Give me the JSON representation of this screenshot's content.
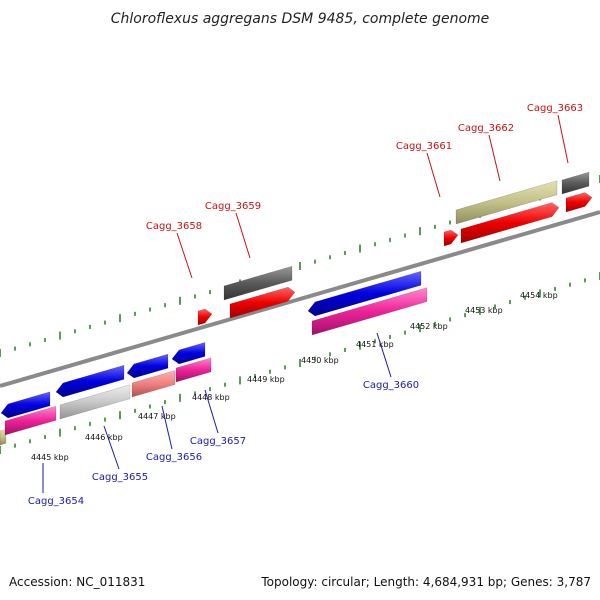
{
  "title": "Chloroflexus aggregans DSM 9485, complete genome",
  "footer": {
    "accession": "Accession: NC_011831",
    "topology": "Topology: circular; Length: 4,684,931 bp; Genes: 3,787"
  },
  "colors": {
    "backbone": "#8a8a8a",
    "tick": "#1f7a1f",
    "label_top": "#cc1111",
    "label_bottom": "#1a1ab0"
  },
  "position_labels": [
    "4445 kbp",
    "4446 kbp",
    "4447 kbp",
    "4448 kbp",
    "4449 kbp",
    "4450 kbp",
    "4451 kbp",
    "4452 kbp",
    "4453 kbp",
    "4454 kbp"
  ],
  "genes": [
    {
      "locus": "Cagg_3654",
      "strand": "-",
      "labeled": true
    },
    {
      "locus": "Cagg_3655",
      "strand": "-",
      "labeled": true
    },
    {
      "locus": "Cagg_3656",
      "strand": "-",
      "labeled": true
    },
    {
      "locus": "Cagg_3657",
      "strand": "-",
      "labeled": true
    },
    {
      "locus": "Cagg_3658",
      "strand": "+",
      "labeled": true
    },
    {
      "locus": "Cagg_3659",
      "strand": "+",
      "labeled": true
    },
    {
      "locus": "Cagg_3660",
      "strand": "-",
      "labeled": true
    },
    {
      "locus": "Cagg_3661",
      "strand": "+",
      "labeled": true
    },
    {
      "locus": "Cagg_3662",
      "strand": "+",
      "labeled": true
    },
    {
      "locus": "Cagg_3663",
      "strand": "+",
      "labeled": true
    }
  ]
}
